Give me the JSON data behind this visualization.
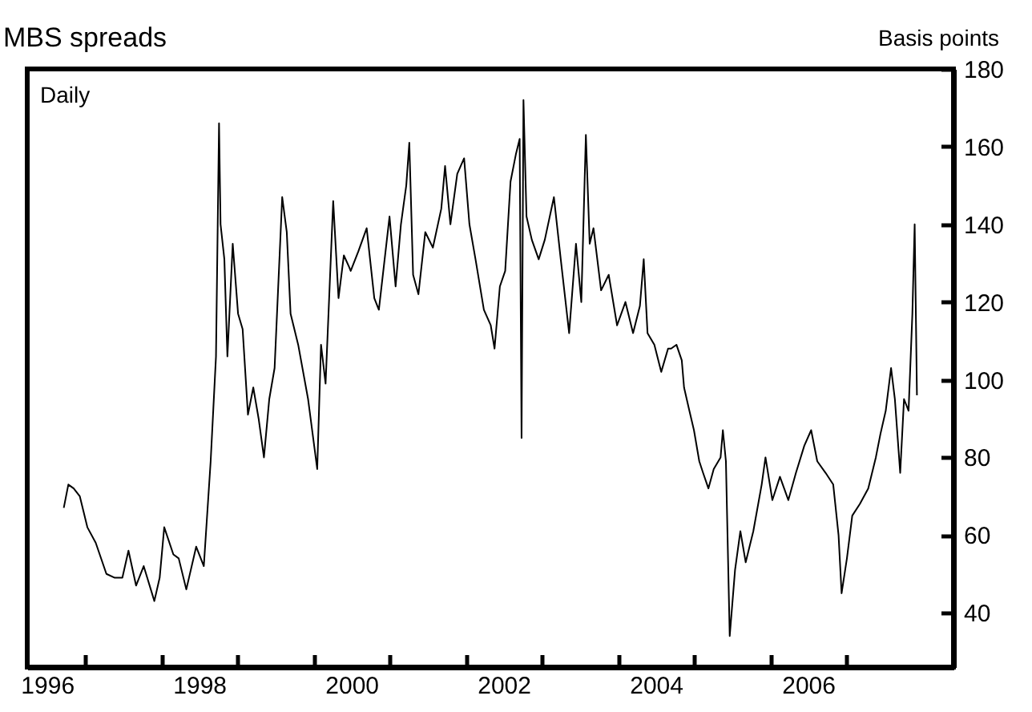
{
  "chart_data": {
    "type": "line",
    "title": "MBS spreads",
    "ylabel": "Basis points",
    "annotations": [
      "Daily"
    ],
    "xlim": [
      1996.24,
      2008.41
    ],
    "ylim": [
      26,
      180
    ],
    "xticks": [
      {
        "value": 1996.5,
        "label": "1996"
      },
      {
        "value": 1997,
        "label": null
      },
      {
        "value": 1998,
        "label": null
      },
      {
        "value": 1998.5,
        "label": "1998"
      },
      {
        "value": 1999,
        "label": null
      },
      {
        "value": 2000,
        "label": null
      },
      {
        "value": 2000.5,
        "label": "2000"
      },
      {
        "value": 2001,
        "label": null
      },
      {
        "value": 2002,
        "label": null
      },
      {
        "value": 2002.5,
        "label": "2002"
      },
      {
        "value": 2003,
        "label": null
      },
      {
        "value": 2004,
        "label": null
      },
      {
        "value": 2004.5,
        "label": "2004"
      },
      {
        "value": 2005,
        "label": null
      },
      {
        "value": 2006,
        "label": null
      },
      {
        "value": 2006.5,
        "label": "2006"
      },
      {
        "value": 2007,
        "label": null
      }
    ],
    "yticks": [
      40,
      60,
      80,
      100,
      120,
      140,
      160,
      180
    ],
    "grid": false,
    "marker": "none",
    "line_style": "solid",
    "x": [
      1996.72,
      1996.78,
      1996.85,
      1996.93,
      1997.03,
      1997.14,
      1997.28,
      1997.39,
      1997.49,
      1997.57,
      1997.67,
      1997.77,
      1997.91,
      1997.98,
      1998.04,
      1998.16,
      1998.23,
      1998.33,
      1998.46,
      1998.56,
      1998.65,
      1998.72,
      1998.76,
      1998.78,
      1998.83,
      1998.87,
      1998.94,
      1999.01,
      1999.07,
      1999.14,
      1999.21,
      1999.28,
      1999.35,
      1999.42,
      1999.49,
      1999.59,
      1999.65,
      1999.7,
      1999.8,
      1999.93,
      2000.05,
      2000.1,
      2000.16,
      2000.26,
      2000.33,
      2000.4,
      2000.47,
      2000.49,
      2000.59,
      2000.7,
      2000.8,
      2000.86,
      2001.0,
      2001.08,
      2001.15,
      2001.22,
      2001.26,
      2001.31,
      2001.38,
      2001.47,
      2001.57,
      2001.68,
      2001.73,
      2001.8,
      2001.89,
      2001.98,
      2002.05,
      2002.13,
      2002.24,
      2002.33,
      2002.38,
      2002.45,
      2002.52,
      2002.59,
      2002.66,
      2002.71,
      2002.735,
      2002.76,
      2002.8,
      2002.87,
      2002.96,
      2003.04,
      2003.16,
      2003.25,
      2003.36,
      2003.45,
      2003.52,
      2003.58,
      2003.63,
      2003.68,
      2003.78,
      2003.88,
      2003.99,
      2004.1,
      2004.2,
      2004.29,
      2004.34,
      2004.39,
      2004.48,
      2004.57,
      2004.66,
      2004.7,
      2004.77,
      2004.84,
      2004.87,
      2004.94,
      2005.0,
      2005.07,
      2005.12,
      2005.19,
      2005.26,
      2005.35,
      2005.38,
      2005.42,
      2005.47,
      2005.54,
      2005.61,
      2005.68,
      2005.78,
      2005.89,
      2005.94,
      2006.03,
      2006.13,
      2006.24,
      2006.34,
      2006.45,
      2006.54,
      2006.62,
      2006.73,
      2006.83,
      2006.9,
      2006.94,
      2007.01,
      2007.08,
      2007.18,
      2007.29,
      2007.39,
      2007.45,
      2007.52,
      2007.59,
      2007.64,
      2007.71,
      2007.76,
      2007.82,
      2007.87,
      2007.9,
      2007.93
    ],
    "series": [
      {
        "color": "#000000",
        "values": [
          67,
          73,
          72,
          70,
          62,
          58,
          50,
          49,
          49,
          56,
          47,
          52,
          43,
          49,
          62,
          55,
          54,
          46,
          57,
          52,
          79,
          106,
          166,
          140,
          131,
          106,
          135,
          117,
          113,
          91,
          98,
          90,
          80,
          95,
          103,
          147,
          138,
          117,
          109,
          95,
          77,
          109,
          99,
          146,
          121,
          132,
          129,
          128,
          133,
          139,
          121,
          118,
          142,
          124,
          140,
          150,
          161,
          127,
          122,
          138,
          134,
          144,
          155,
          140,
          153,
          157,
          140,
          131,
          118,
          114,
          108,
          124,
          128,
          151,
          158,
          162,
          85,
          172,
          142,
          136,
          131,
          136,
          147,
          131,
          112,
          135,
          120,
          163,
          135,
          139,
          123,
          127,
          114,
          120,
          112,
          119,
          131,
          112,
          109,
          102,
          108,
          108,
          109,
          105,
          98,
          92,
          87,
          79,
          76,
          72,
          77,
          80,
          87,
          79,
          34,
          51,
          61,
          53,
          61,
          73,
          80,
          69,
          75,
          69,
          76,
          83,
          87,
          79,
          76,
          73,
          60,
          45,
          54,
          65,
          68,
          72,
          80,
          86,
          92,
          103,
          95,
          76,
          95,
          92,
          117,
          140,
          96
        ]
      }
    ]
  }
}
